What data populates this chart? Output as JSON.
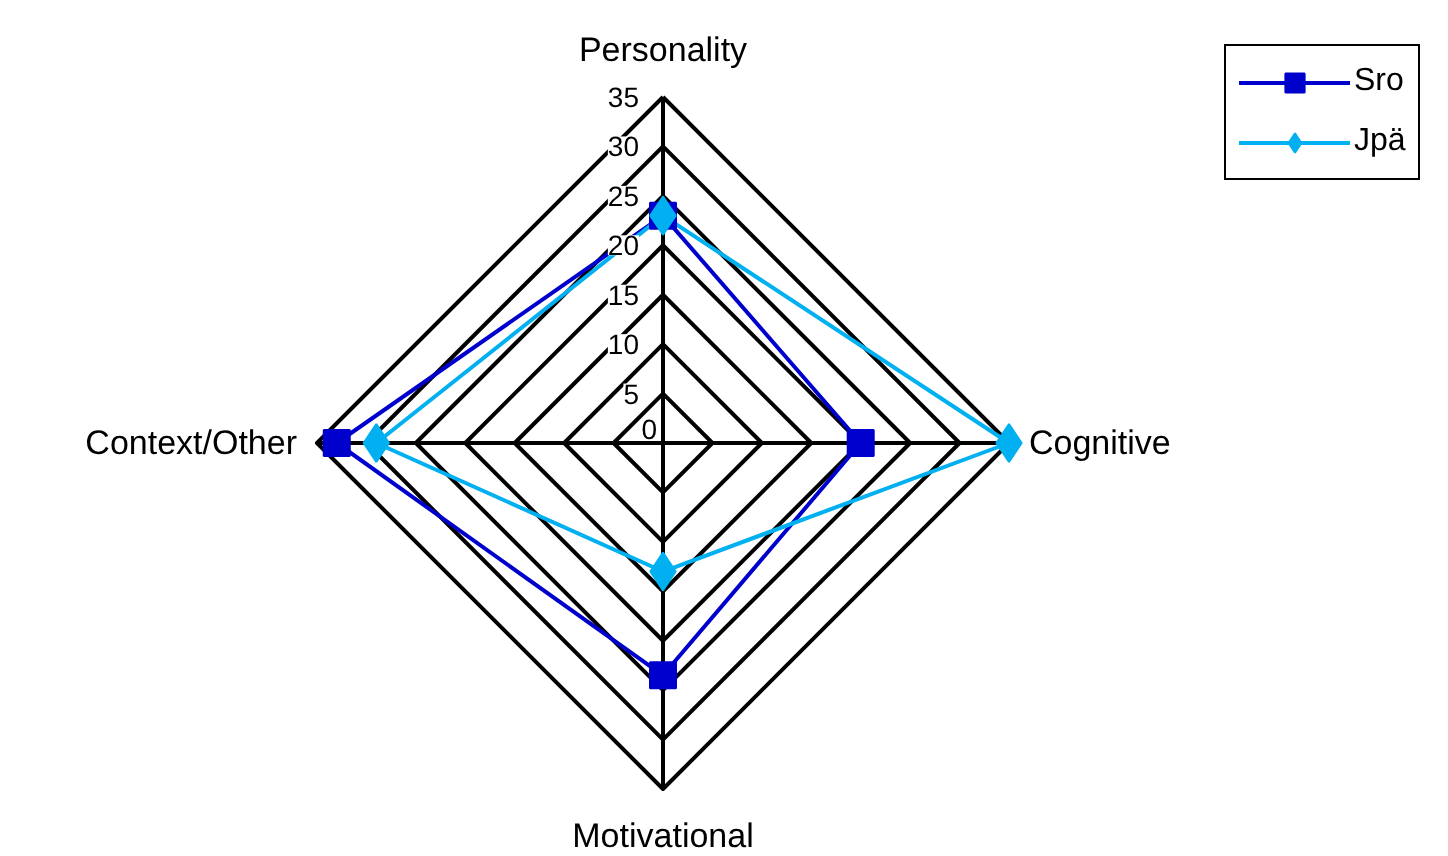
{
  "chart_data": {
    "type": "radar",
    "categories": [
      "Personality",
      "Cognitive",
      "Motivational",
      "Context/Other"
    ],
    "ylim": [
      0,
      35
    ],
    "yticks": [
      0,
      5,
      10,
      15,
      20,
      25,
      30,
      35
    ],
    "grid": true,
    "legend": "top right",
    "series": [
      {
        "name": "Sro",
        "color": "#0000cc",
        "marker": "square",
        "values": [
          23,
          20,
          23.5,
          33
        ]
      },
      {
        "name": "Jpä",
        "color": "#00b0f0",
        "marker": "diamond",
        "values": [
          23,
          35,
          13,
          29
        ]
      }
    ]
  }
}
